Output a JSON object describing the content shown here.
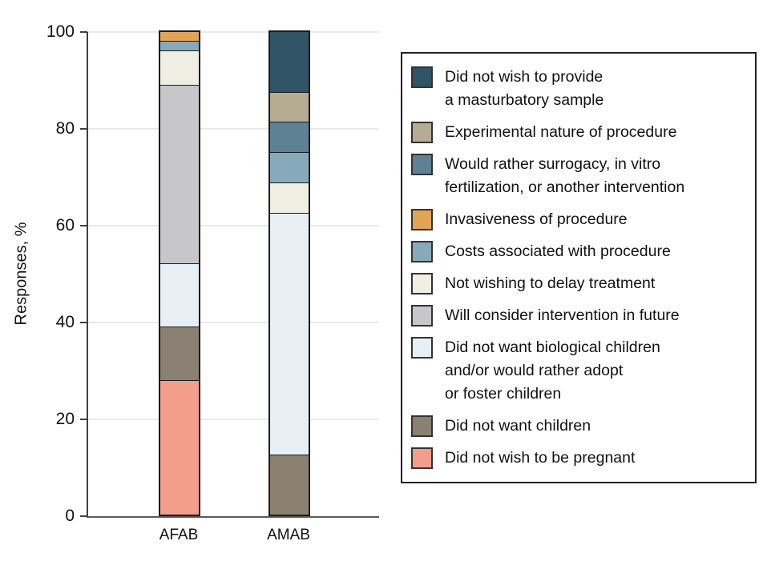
{
  "chart_data": {
    "type": "bar",
    "stacked": true,
    "title": "",
    "xlabel": "",
    "ylabel": "Responses, %",
    "ylim": [
      0,
      100
    ],
    "yticks": [
      0,
      20,
      40,
      60,
      80,
      100
    ],
    "grid": true,
    "grid_color": "#e9e9e9",
    "axis_color": "#3f3f3f",
    "segment_border_color": "#1c1c1c",
    "legend_position": "right",
    "categories": [
      "AFAB",
      "AMAB"
    ],
    "series": [
      {
        "name": "Did not wish to provide a masturbatory sample",
        "legend_lines": [
          "Did not wish to provide",
          "a masturbatory sample"
        ],
        "color": "#2e5465",
        "values": [
          0,
          12.5
        ]
      },
      {
        "name": "Experimental nature of procedure",
        "legend_lines": [
          "Experimental nature of procedure"
        ],
        "color": "#b6ab93",
        "values": [
          0,
          6.25
        ]
      },
      {
        "name": "Would rather surrogacy, in vitro fertilization, or another intervention",
        "legend_lines": [
          "Would rather surrogacy, in vitro",
          "fertilization, or another intervention"
        ],
        "color": "#5c8293",
        "values": [
          0,
          6.25
        ]
      },
      {
        "name": "Invasiveness of procedure",
        "legend_lines": [
          "Invasiveness of procedure"
        ],
        "color": "#e3a355",
        "values": [
          2,
          0
        ]
      },
      {
        "name": "Costs associated with procedure",
        "legend_lines": [
          "Costs associated with procedure"
        ],
        "color": "#87aabb",
        "values": [
          2,
          6.25
        ]
      },
      {
        "name": "Not wishing to delay treatment",
        "legend_lines": [
          "Not wishing to delay treatment"
        ],
        "color": "#efeee2",
        "values": [
          7,
          6.25
        ]
      },
      {
        "name": "Will consider intervention in future",
        "legend_lines": [
          "Will consider intervention in future"
        ],
        "color": "#c7c7ca",
        "values": [
          37,
          0
        ]
      },
      {
        "name": "Did not want biological children and/or would rather adopt or foster children",
        "legend_lines": [
          "Did not want biological children",
          "and/or would rather adopt",
          "or foster children"
        ],
        "color": "#e7eff4",
        "values": [
          13,
          50
        ]
      },
      {
        "name": "Did not want children",
        "legend_lines": [
          "Did not want children"
        ],
        "color": "#8a8173",
        "values": [
          11,
          12.5
        ]
      },
      {
        "name": "Did not wish to be pregnant",
        "legend_lines": [
          "Did not wish to be pregnant"
        ],
        "color": "#f29e8a",
        "values": [
          28,
          0
        ]
      }
    ]
  }
}
